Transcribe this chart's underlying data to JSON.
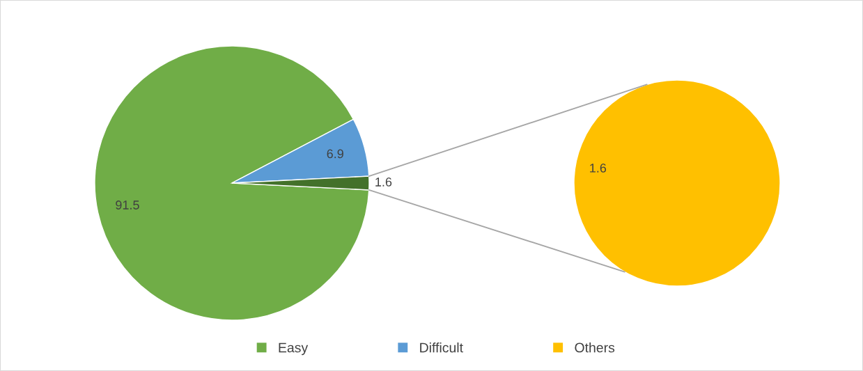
{
  "chart_data": [
    {
      "type": "pie",
      "categories": [
        "Easy",
        "Difficult",
        null
      ],
      "values": [
        91.5,
        6.9,
        1.6
      ],
      "colors": [
        "#70ad47",
        "#5b9bd5",
        "#43712a"
      ],
      "data_labels": true,
      "legend": "bottom"
    },
    {
      "type": "pie",
      "categories": [
        "Others"
      ],
      "values": [
        1.6
      ],
      "colors": [
        "#ffc000"
      ],
      "data_labels": true,
      "legend": "bottom"
    }
  ]
}
